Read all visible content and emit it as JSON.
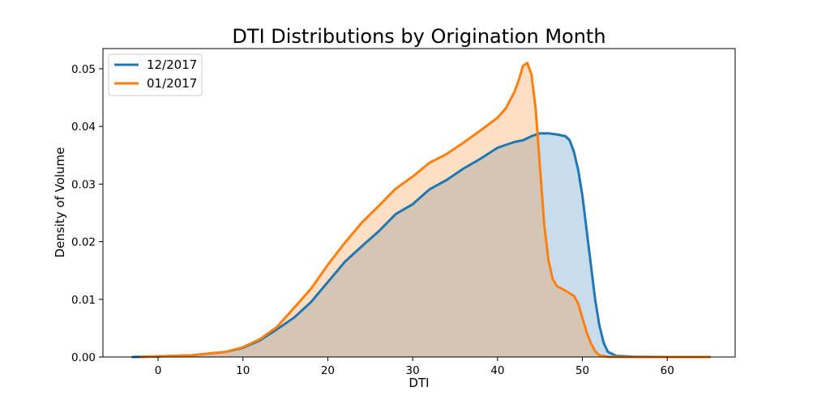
{
  "chart_data": {
    "type": "area",
    "title": "DTI Distributions by Origination Month",
    "xlabel": "DTI",
    "ylabel": "Density of Volume",
    "xlim": [
      -6.5,
      68
    ],
    "ylim": [
      0,
      0.0535
    ],
    "xticks": [
      0,
      10,
      20,
      30,
      40,
      50,
      60
    ],
    "xtick_labels": [
      "0",
      "10",
      "20",
      "30",
      "40",
      "50",
      "60"
    ],
    "yticks": [
      0,
      0.01,
      0.02,
      0.03,
      0.04,
      0.05
    ],
    "ytick_labels": [
      "0.00",
      "0.01",
      "0.02",
      "0.03",
      "0.04",
      "0.05"
    ],
    "grid": false,
    "legend_position": "top-left",
    "series": [
      {
        "name": "12/2017",
        "color": "#1f77b4",
        "points": [
          [
            -3,
            0
          ],
          [
            0,
            0.0001
          ],
          [
            4,
            0.0003
          ],
          [
            8,
            0.0009
          ],
          [
            10,
            0.0016
          ],
          [
            12,
            0.0029
          ],
          [
            14,
            0.0048
          ],
          [
            16,
            0.0068
          ],
          [
            18,
            0.0095
          ],
          [
            20,
            0.013
          ],
          [
            22,
            0.0165
          ],
          [
            24,
            0.0192
          ],
          [
            26,
            0.0218
          ],
          [
            28,
            0.0248
          ],
          [
            30,
            0.0265
          ],
          [
            32,
            0.0291
          ],
          [
            34,
            0.0307
          ],
          [
            36,
            0.0327
          ],
          [
            38,
            0.0344
          ],
          [
            40,
            0.0363
          ],
          [
            42,
            0.0373
          ],
          [
            43,
            0.0376
          ],
          [
            44,
            0.0383
          ],
          [
            45,
            0.0388
          ],
          [
            46,
            0.0388
          ],
          [
            47,
            0.0386
          ],
          [
            48,
            0.0383
          ],
          [
            48.5,
            0.0376
          ],
          [
            49,
            0.0356
          ],
          [
            49.5,
            0.0325
          ],
          [
            50,
            0.028
          ],
          [
            50.5,
            0.022
          ],
          [
            51,
            0.016
          ],
          [
            51.5,
            0.01
          ],
          [
            52,
            0.0055
          ],
          [
            52.5,
            0.0025
          ],
          [
            53,
            0.0009
          ],
          [
            54,
            0.0002
          ],
          [
            56,
            5e-05
          ],
          [
            60,
            0
          ],
          [
            65,
            0
          ]
        ]
      },
      {
        "name": "01/2017",
        "color": "#ff7f0e",
        "points": [
          [
            -2,
            0
          ],
          [
            0,
            0.0001
          ],
          [
            4,
            0.0003
          ],
          [
            8,
            0.0009
          ],
          [
            10,
            0.0017
          ],
          [
            12,
            0.0031
          ],
          [
            14,
            0.0052
          ],
          [
            16,
            0.0085
          ],
          [
            18,
            0.0118
          ],
          [
            20,
            0.016
          ],
          [
            22,
            0.0198
          ],
          [
            24,
            0.0233
          ],
          [
            26,
            0.0262
          ],
          [
            28,
            0.0292
          ],
          [
            30,
            0.0313
          ],
          [
            32,
            0.0337
          ],
          [
            34,
            0.0352
          ],
          [
            36,
            0.0372
          ],
          [
            38,
            0.0393
          ],
          [
            40,
            0.0415
          ],
          [
            41,
            0.0432
          ],
          [
            42,
            0.046
          ],
          [
            42.5,
            0.048
          ],
          [
            43,
            0.0505
          ],
          [
            43.5,
            0.051
          ],
          [
            44,
            0.049
          ],
          [
            44.5,
            0.043
          ],
          [
            45,
            0.033
          ],
          [
            45.5,
            0.023
          ],
          [
            46,
            0.0168
          ],
          [
            46.5,
            0.0135
          ],
          [
            47,
            0.0123
          ],
          [
            48,
            0.0115
          ],
          [
            49,
            0.0106
          ],
          [
            49.5,
            0.0093
          ],
          [
            50,
            0.0068
          ],
          [
            50.5,
            0.0043
          ],
          [
            51,
            0.0024
          ],
          [
            51.5,
            0.001
          ],
          [
            52,
            0.0003
          ],
          [
            53,
            5e-05
          ],
          [
            55,
            0
          ],
          [
            65,
            0
          ]
        ]
      }
    ]
  }
}
